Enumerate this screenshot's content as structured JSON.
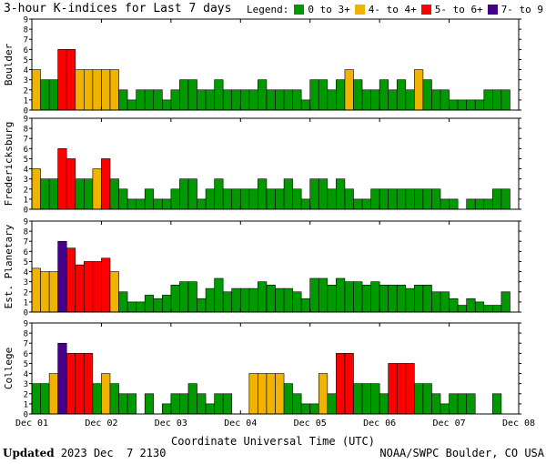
{
  "title": "3-hour K-indices for Last 7 days",
  "legend": {
    "label": "Legend:",
    "items": [
      {
        "label": "0 to 3+",
        "color": "#009900"
      },
      {
        "label": "4- to 4+",
        "color": "#f0b400"
      },
      {
        "label": "5- to 6+",
        "color": "#ff0000"
      },
      {
        "label": "7- to 9",
        "color": "#440088"
      }
    ]
  },
  "footer": {
    "updated_label": "Updated",
    "updated_value": "2023 Dec  7 2130",
    "source": "NOAA/SWPC Boulder, CO USA"
  },
  "chart_data": [
    {
      "type": "bar",
      "title": "Boulder",
      "ylim": [
        0,
        9
      ],
      "yticks": [
        "0",
        "1",
        "2",
        "3",
        "4",
        "5",
        "6",
        "7",
        "8",
        "9"
      ],
      "x_ticks": [
        "Dec 01",
        "Dec 02",
        "Dec 03",
        "Dec 04",
        "Dec 05",
        "Dec 06",
        "Dec 07",
        "Dec 08"
      ],
      "values": [
        4,
        3,
        3,
        6,
        6,
        4,
        4,
        4,
        4,
        4,
        2,
        1,
        2,
        2,
        2,
        1,
        2,
        3,
        3,
        2,
        2,
        3,
        2,
        2,
        2,
        2,
        3,
        2,
        2,
        2,
        2,
        1,
        3,
        3,
        2,
        3,
        4,
        3,
        2,
        2,
        3,
        2,
        3,
        2,
        4,
        3,
        2,
        2,
        1,
        1,
        1,
        1,
        2,
        2,
        2,
        0
      ]
    },
    {
      "type": "bar",
      "title": "Fredericksburg",
      "ylim": [
        0,
        9
      ],
      "yticks": [
        "0",
        "1",
        "2",
        "3",
        "4",
        "5",
        "6",
        "7",
        "8",
        "9"
      ],
      "x_ticks": [
        "Dec 01",
        "Dec 02",
        "Dec 03",
        "Dec 04",
        "Dec 05",
        "Dec 06",
        "Dec 07",
        "Dec 08"
      ],
      "values": [
        4,
        3,
        3,
        6,
        5,
        3,
        3,
        4,
        5,
        3,
        2,
        1,
        1,
        2,
        1,
        1,
        2,
        3,
        3,
        1,
        2,
        3,
        2,
        2,
        2,
        2,
        3,
        2,
        2,
        3,
        2,
        1,
        3,
        3,
        2,
        3,
        2,
        1,
        1,
        2,
        2,
        2,
        2,
        2,
        2,
        2,
        2,
        1,
        1,
        0,
        1,
        1,
        1,
        2,
        2,
        0
      ]
    },
    {
      "type": "bar",
      "title": "Est. Planetary",
      "ylim": [
        0,
        9
      ],
      "yticks": [
        "0",
        "1",
        "2",
        "3",
        "4",
        "5",
        "6",
        "7",
        "8",
        "9"
      ],
      "x_ticks": [
        "Dec 01",
        "Dec 02",
        "Dec 03",
        "Dec 04",
        "Dec 05",
        "Dec 06",
        "Dec 07",
        "Dec 08"
      ],
      "values": [
        4.33,
        4,
        4,
        7,
        6.33,
        4.67,
        5,
        5,
        5.33,
        4,
        2,
        1,
        1,
        1.67,
        1.33,
        1.67,
        2.67,
        3,
        3,
        1.33,
        2.33,
        3.33,
        2,
        2.33,
        2.33,
        2.33,
        3,
        2.67,
        2.33,
        2.33,
        2,
        1.33,
        3.33,
        3.33,
        2.67,
        3.33,
        3,
        3,
        2.67,
        3,
        2.67,
        2.67,
        2.67,
        2.33,
        2.67,
        2.67,
        2,
        2,
        1.33,
        0.67,
        1.33,
        1,
        0.67,
        0.67,
        2,
        0
      ]
    },
    {
      "type": "bar",
      "title": "College",
      "ylim": [
        0,
        9
      ],
      "yticks": [
        "0",
        "1",
        "2",
        "3",
        "4",
        "5",
        "6",
        "7",
        "8",
        "9"
      ],
      "x_ticks": [
        "Dec 01",
        "Dec 02",
        "Dec 03",
        "Dec 04",
        "Dec 05",
        "Dec 06",
        "Dec 07",
        "Dec 08"
      ],
      "values": [
        3,
        3,
        4,
        7,
        6,
        6,
        6,
        3,
        4,
        3,
        2,
        2,
        0,
        2,
        0,
        1,
        2,
        2,
        3,
        2,
        1,
        2,
        2,
        0,
        0,
        4,
        4,
        4,
        4,
        3,
        2,
        1,
        1,
        4,
        2,
        6,
        6,
        3,
        3,
        3,
        2,
        5,
        5,
        5,
        3,
        3,
        2,
        1,
        2,
        2,
        2,
        0,
        0,
        2,
        0,
        0
      ],
      "xlabel": "Coordinate Universal Time (UTC)"
    }
  ]
}
